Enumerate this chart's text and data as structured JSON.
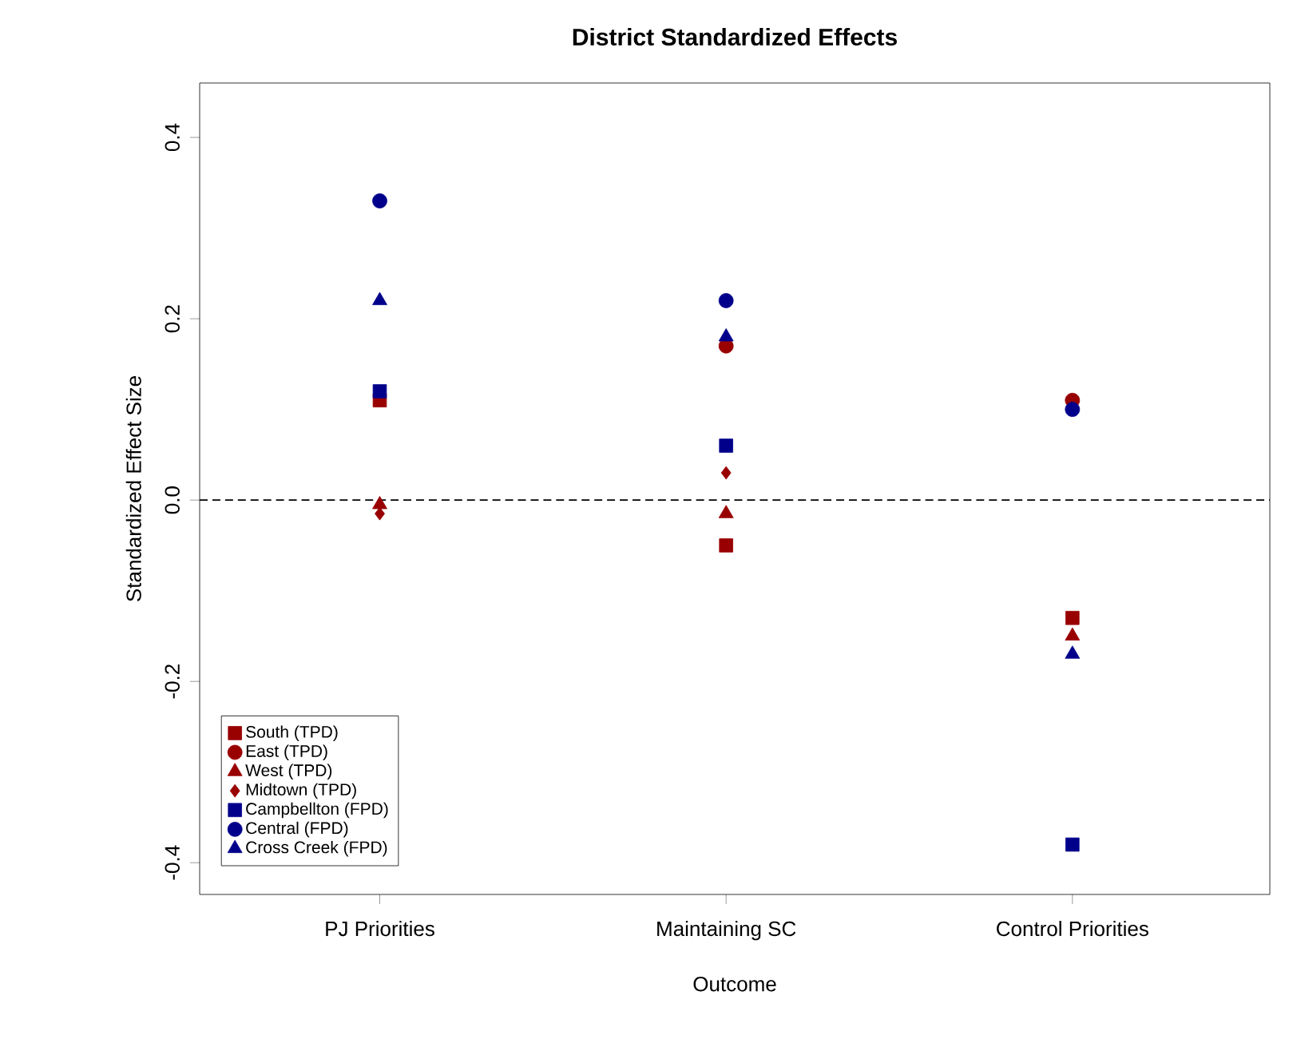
{
  "chart_data": {
    "type": "scatter",
    "title": "District Standardized Effects",
    "xlabel": "Outcome",
    "ylabel": "Standardized Effect Size",
    "categories": [
      "PJ Priorities",
      "Maintaining SC",
      "Control Priorities"
    ],
    "series": [
      {
        "name": "South (TPD)",
        "color": "#990000",
        "marker": "square",
        "values": [
          0.11,
          -0.05,
          -0.13
        ]
      },
      {
        "name": "East (TPD)",
        "color": "#990000",
        "marker": "circle",
        "values": [
          null,
          0.17,
          0.11
        ]
      },
      {
        "name": "West (TPD)",
        "color": "#990000",
        "marker": "triangle",
        "values": [
          -0.005,
          -0.015,
          -0.15
        ]
      },
      {
        "name": "Midtown (TPD)",
        "color": "#990000",
        "marker": "diamond",
        "values": [
          -0.015,
          0.03,
          null
        ]
      },
      {
        "name": "Campbellton (FPD)",
        "color": "#00008b",
        "marker": "square",
        "values": [
          0.12,
          0.06,
          -0.38
        ]
      },
      {
        "name": "Central (FPD)",
        "color": "#00008b",
        "marker": "circle",
        "values": [
          0.33,
          0.22,
          0.1
        ]
      },
      {
        "name": "Cross Creek (FPD)",
        "color": "#00008b",
        "marker": "triangle",
        "values": [
          0.22,
          0.18,
          -0.17
        ]
      }
    ],
    "ylim": [
      -0.435,
      0.46
    ],
    "yticks": [
      {
        "value": -0.4,
        "label": "-0.4"
      },
      {
        "value": -0.2,
        "label": "-0.2"
      },
      {
        "value": 0,
        "label": "0.0"
      },
      {
        "value": 0.2,
        "label": "0.2"
      },
      {
        "value": 0.4,
        "label": "0.4"
      }
    ],
    "ref_lines": [
      {
        "axis": "y",
        "value": 0,
        "color": "#000000",
        "line_style": "dashed"
      }
    ],
    "grid": false,
    "legend": "bottom left"
  }
}
